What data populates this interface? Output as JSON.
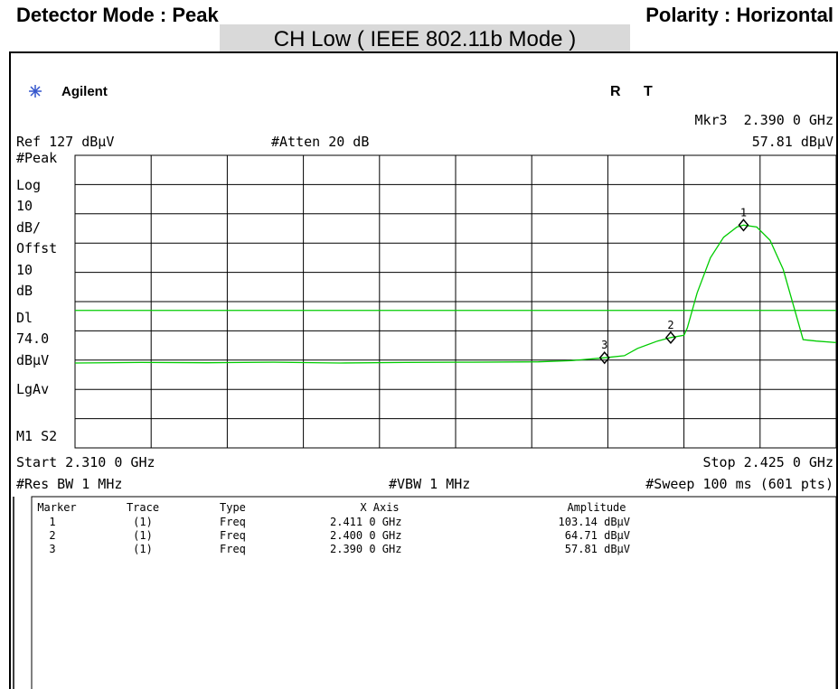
{
  "header": {
    "detector": "Detector Mode : Peak",
    "polarity": "Polarity : Horizontal",
    "title": "CH Low ( IEEE 802.11b Mode )"
  },
  "screen": {
    "brand": "Agilent",
    "status_r": "R",
    "status_t": "T",
    "marker_readout": "Mkr3  2.390 0 GHz",
    "marker_amplitude": "57.81 dBµV",
    "ref": "Ref 127 dBµV",
    "atten": "#Atten 20 dB",
    "side_labels": [
      "#Peak",
      "Log",
      "10",
      "dB/",
      "Offst",
      "10",
      "dB",
      "Dl",
      "74.0",
      "dBµV",
      "LgAv",
      "M1  S2"
    ],
    "start": "Start 2.310 0 GHz",
    "stop": "Stop 2.425 0 GHz",
    "res_bw": "#Res BW 1 MHz",
    "vbw": "#VBW 1 MHz",
    "sweep": "#Sweep 100 ms (601 pts)"
  },
  "chart_data": {
    "type": "line",
    "color": "#00cc00",
    "x": [
      2.31,
      2.32,
      2.33,
      2.34,
      2.35,
      2.36,
      2.37,
      2.38,
      2.385,
      2.39,
      2.393,
      2.395,
      2.398,
      2.4,
      2.402,
      2.4025,
      2.404,
      2.406,
      2.408,
      2.41,
      2.411,
      2.413,
      2.415,
      2.417,
      2.419,
      2.42,
      2.422,
      2.425
    ],
    "values": [
      56,
      56.2,
      56.1,
      56.3,
      56,
      56.2,
      56.3,
      56.4,
      56.8,
      57.81,
      58.5,
      61,
      63.5,
      64.71,
      65.5,
      68,
      80,
      92,
      99,
      102.5,
      103.14,
      102.5,
      98,
      88,
      72,
      64,
      63.5,
      63
    ],
    "xlim": [
      2.31,
      2.425
    ],
    "ylim": [
      27,
      127
    ],
    "xticks": [
      2.31,
      2.3215,
      2.333,
      2.3445,
      2.356,
      2.3675,
      2.379,
      2.3905,
      2.402,
      2.4135,
      2.425
    ],
    "yticks": [
      27,
      37,
      47,
      57,
      67,
      77,
      87,
      97,
      107,
      117,
      127
    ],
    "display_line": 74,
    "markers": [
      {
        "label": "1",
        "x": 2.411,
        "y": 103.14
      },
      {
        "label": "2",
        "x": 2.4,
        "y": 64.71
      },
      {
        "label": "3",
        "x": 2.39,
        "y": 57.81
      }
    ]
  },
  "marker_table": {
    "columns": [
      "Marker",
      "Trace",
      "Type",
      "X Axis",
      "Amplitude"
    ],
    "rows": [
      [
        "1",
        "(1)",
        "Freq",
        "2.411 0 GHz",
        "103.14 dBµV"
      ],
      [
        "2",
        "(1)",
        "Freq",
        "2.400 0 GHz",
        "64.71 dBµV"
      ],
      [
        "3",
        "(1)",
        "Freq",
        "2.390 0 GHz",
        "57.81 dBµV"
      ]
    ]
  }
}
